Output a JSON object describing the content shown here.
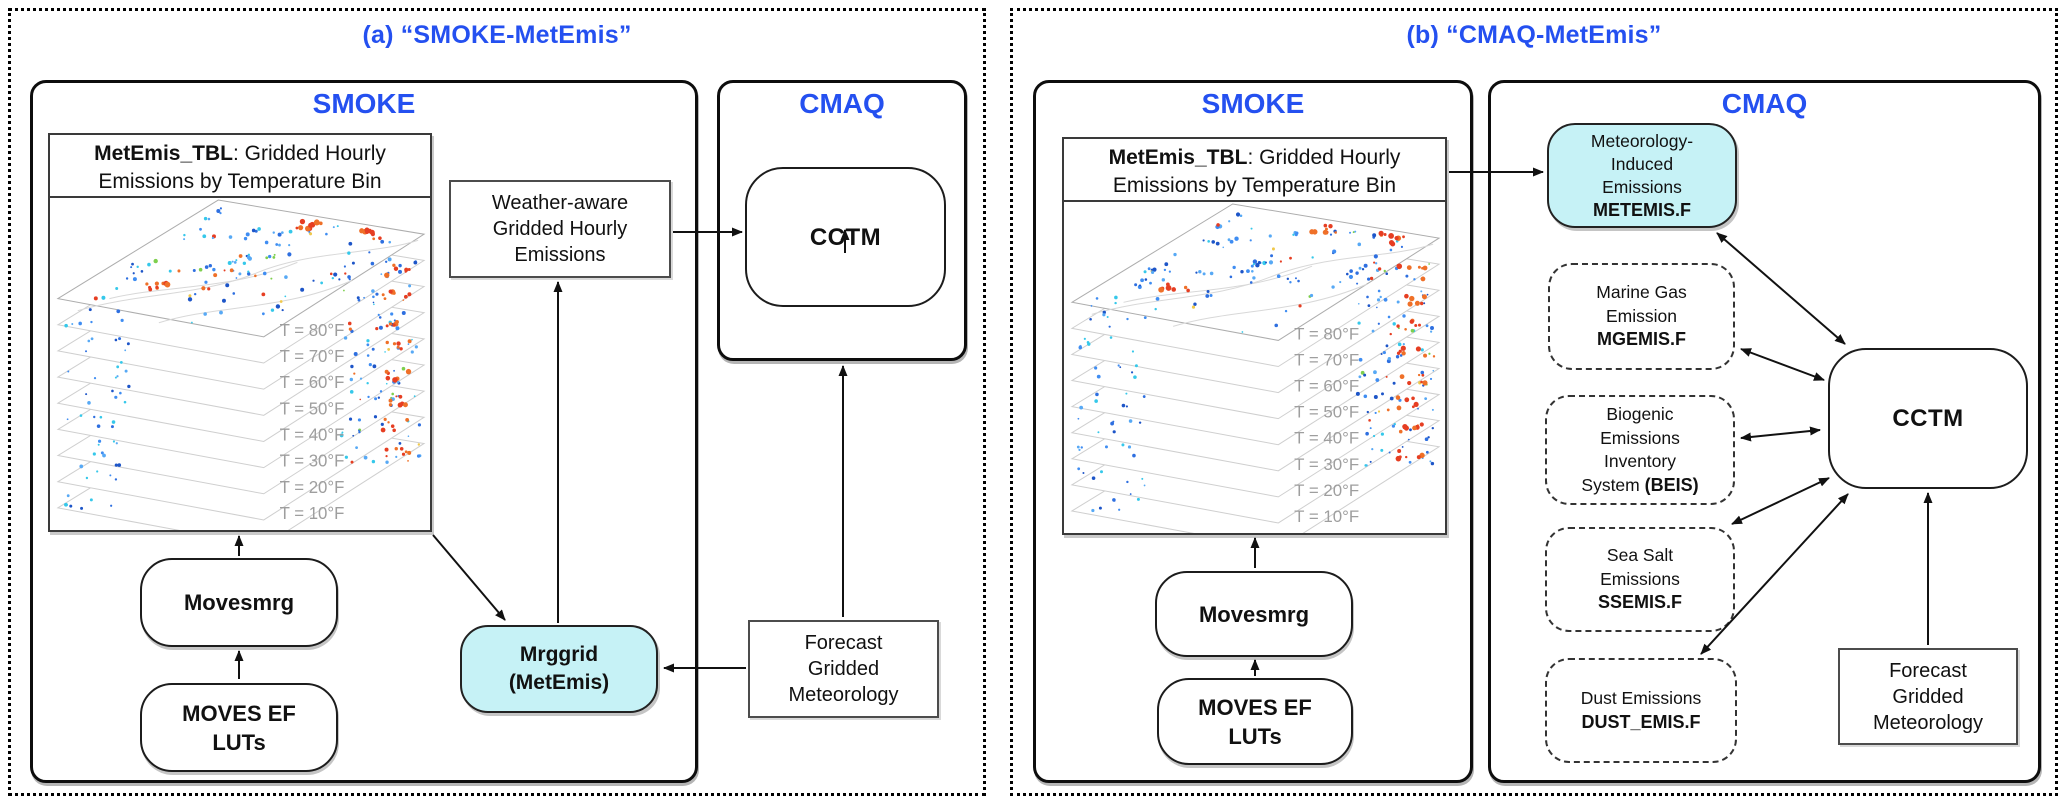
{
  "colors": {
    "accent_blue": "#2450f0",
    "cyan_fill": "#c6f2f6"
  },
  "smoke_block": {
    "header_bold": "MetEmis_TBL",
    "header_line1_rest": ": Gridded Hourly",
    "header_line2": "Emissions by Temperature Bin",
    "movesmrg": "Movesmrg",
    "moves_ef": [
      "MOVES EF",
      "LUTs"
    ],
    "temp_labels": [
      "T = 80°F",
      "T = 70°F",
      "T = 60°F",
      "T = 50°F",
      "T = 40°F",
      "T = 30°F",
      "T = 20°F",
      "T = 10°F"
    ]
  },
  "panel_a": {
    "title": "(a) “SMOKE-MetEmis”",
    "smoke_title": "SMOKE",
    "cmaq_title": "CMAQ",
    "cctm": "CCTM",
    "weather_aware": [
      "Weather-aware",
      "Gridded Hourly",
      "Emissions"
    ],
    "mrggrid": [
      "Mrggrid",
      "(MetEmis)"
    ],
    "forecast": [
      "Forecast",
      "Gridded",
      "Meteorology"
    ]
  },
  "panel_b": {
    "title": "(b) “CMAQ-MetEmis”",
    "smoke_title": "SMOKE",
    "cmaq_title": "CMAQ",
    "cctm": "CCTM",
    "metemis": {
      "lines": [
        "Meteorology-",
        "Induced",
        "Emissions"
      ],
      "file": "METEMIS.F"
    },
    "marine": {
      "lines": [
        "Marine Gas",
        "Emission"
      ],
      "file": "MGEMIS.F"
    },
    "beis": {
      "lines": [
        "Biogenic",
        "Emissions",
        "Inventory"
      ],
      "last_normal": "System ",
      "last_bold": "(BEIS)"
    },
    "seasalt": {
      "lines": [
        "Sea Salt",
        "Emissions"
      ],
      "file": "SSEMIS.F"
    },
    "dust": {
      "lines": [
        "Dust Emissions"
      ],
      "file": "DUST_EMIS.F"
    },
    "forecast": [
      "Forecast",
      "Gridded",
      "Meteorology"
    ]
  }
}
